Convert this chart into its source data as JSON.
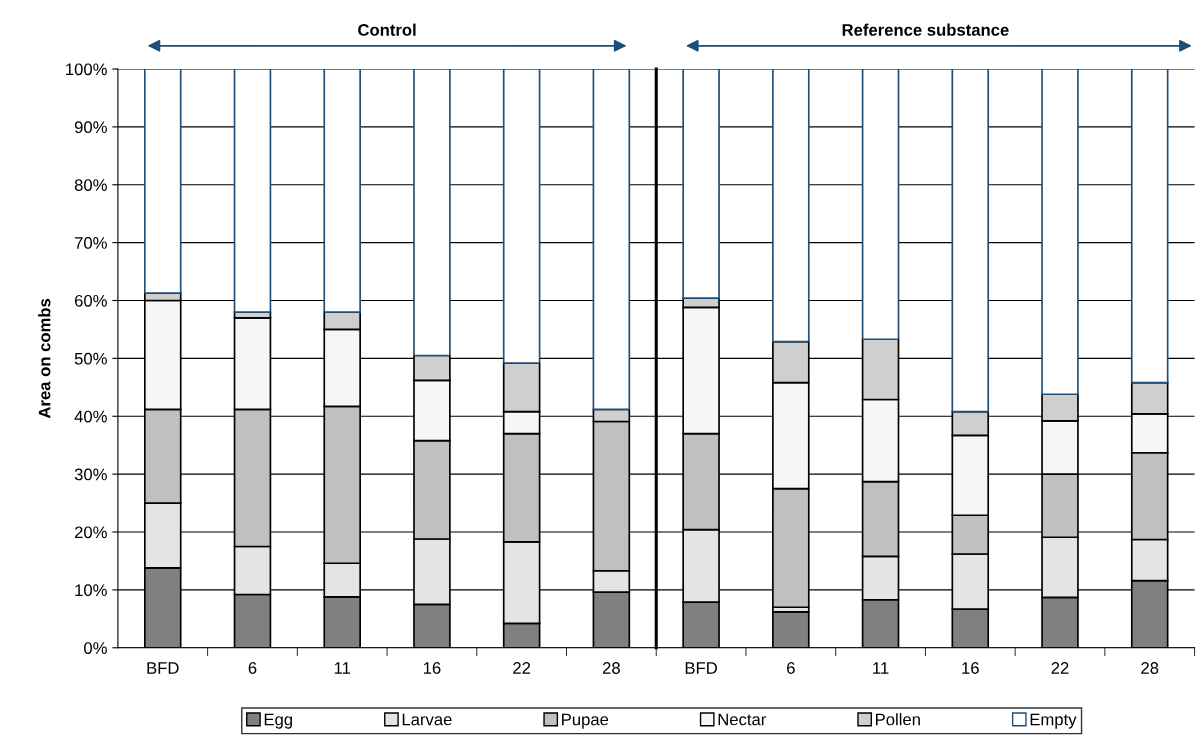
{
  "chart_data": [
    {
      "type": "bar",
      "stacked": true,
      "title": "Control",
      "ylabel": "Area on combs",
      "categories": [
        "BFD",
        "6",
        "11",
        "16",
        "22",
        "28"
      ],
      "series": [
        {
          "name": "Egg",
          "color": "#808080",
          "values": [
            13.8,
            9.2,
            8.8,
            7.5,
            4.2,
            9.6
          ]
        },
        {
          "name": "Larvae",
          "color": "#e4e4e4",
          "values": [
            11.2,
            8.3,
            5.8,
            11.3,
            14.1,
            3.7
          ]
        },
        {
          "name": "Pupae",
          "color": "#c0c0c0",
          "values": [
            16.2,
            23.7,
            27.1,
            17.0,
            18.7,
            25.8
          ]
        },
        {
          "name": "Nectar",
          "color": "#f6f6f6",
          "values": [
            18.8,
            15.8,
            13.3,
            10.4,
            3.8,
            null
          ]
        },
        {
          "name": "Pollen",
          "color": "#cfcfcf",
          "values": [
            1.3,
            1.0,
            3.0,
            4.3,
            8.4,
            2.1
          ]
        },
        {
          "name": "Empty",
          "color": "#ffffff",
          "values": [
            38.7,
            42.0,
            42.0,
            49.5,
            50.8,
            58.8
          ]
        }
      ],
      "ylim": [
        0,
        100
      ],
      "yticks": [
        {
          "value": 0,
          "label": "0%"
        },
        {
          "value": 10,
          "label": "10%"
        },
        {
          "value": 20,
          "label": "20%"
        },
        {
          "value": 30,
          "label": "30%"
        },
        {
          "value": 40,
          "label": "40%"
        },
        {
          "value": 50,
          "label": "50%"
        },
        {
          "value": 60,
          "label": "60%"
        },
        {
          "value": 70,
          "label": "70%"
        },
        {
          "value": 80,
          "label": "80%"
        },
        {
          "value": 90,
          "label": "90%"
        },
        {
          "value": 100,
          "label": "100%"
        }
      ],
      "grid": "y",
      "legend": "bottom"
    },
    {
      "type": "bar",
      "stacked": true,
      "title": "Reference substance",
      "categories": [
        "BFD",
        "6",
        "11",
        "16",
        "22",
        "28"
      ],
      "series": [
        {
          "color": "#808080",
          "values": [
            7.9,
            6.2,
            8.3,
            6.7,
            8.7,
            11.6
          ]
        },
        {
          "color": "#e4e4e4",
          "values": [
            12.5,
            0.8,
            7.5,
            9.5,
            10.4,
            7.1
          ]
        },
        {
          "color": "#c0c0c0",
          "values": [
            16.6,
            20.5,
            12.9,
            6.7,
            10.9,
            15.0
          ]
        },
        {
          "color": "#f6f6f6",
          "values": [
            21.8,
            18.3,
            14.2,
            13.8,
            9.2,
            6.7
          ]
        },
        {
          "color": "#cfcfcf",
          "values": [
            1.6,
            7.1,
            10.4,
            4.1,
            4.6,
            5.4
          ]
        },
        {
          "color": "#ffffff",
          "values": [
            39.6,
            47.1,
            46.7,
            59.2,
            56.2,
            54.2
          ]
        }
      ],
      "ylim": [
        0,
        100
      ],
      "yticks": [
        0,
        10,
        20,
        30,
        40,
        50,
        60,
        70,
        80,
        90,
        100
      ],
      "tick_labels": "x",
      "grid": "y"
    }
  ]
}
